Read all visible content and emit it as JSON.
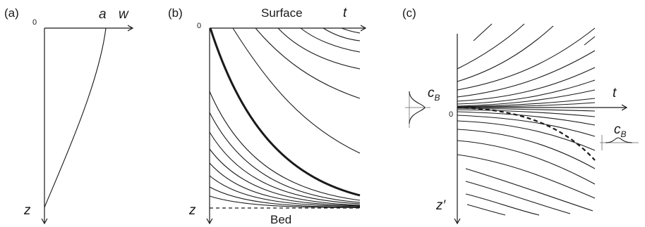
{
  "panel_a": {
    "label": "(a)",
    "origin": "0",
    "a_label": "a",
    "x_axis": "w",
    "y_axis": "z"
  },
  "panel_b": {
    "label": "(b)",
    "origin": "0",
    "surface_label": "Surface",
    "bed_label": "Bed",
    "x_axis": "t",
    "y_axis": "z"
  },
  "panel_c": {
    "label": "(c)",
    "origin": "0",
    "x_axis": "t",
    "y_axis": "z′",
    "cb_main": "c",
    "cb_sub": "B",
    "cb2_main": "c",
    "cb2_sub": "B"
  }
}
